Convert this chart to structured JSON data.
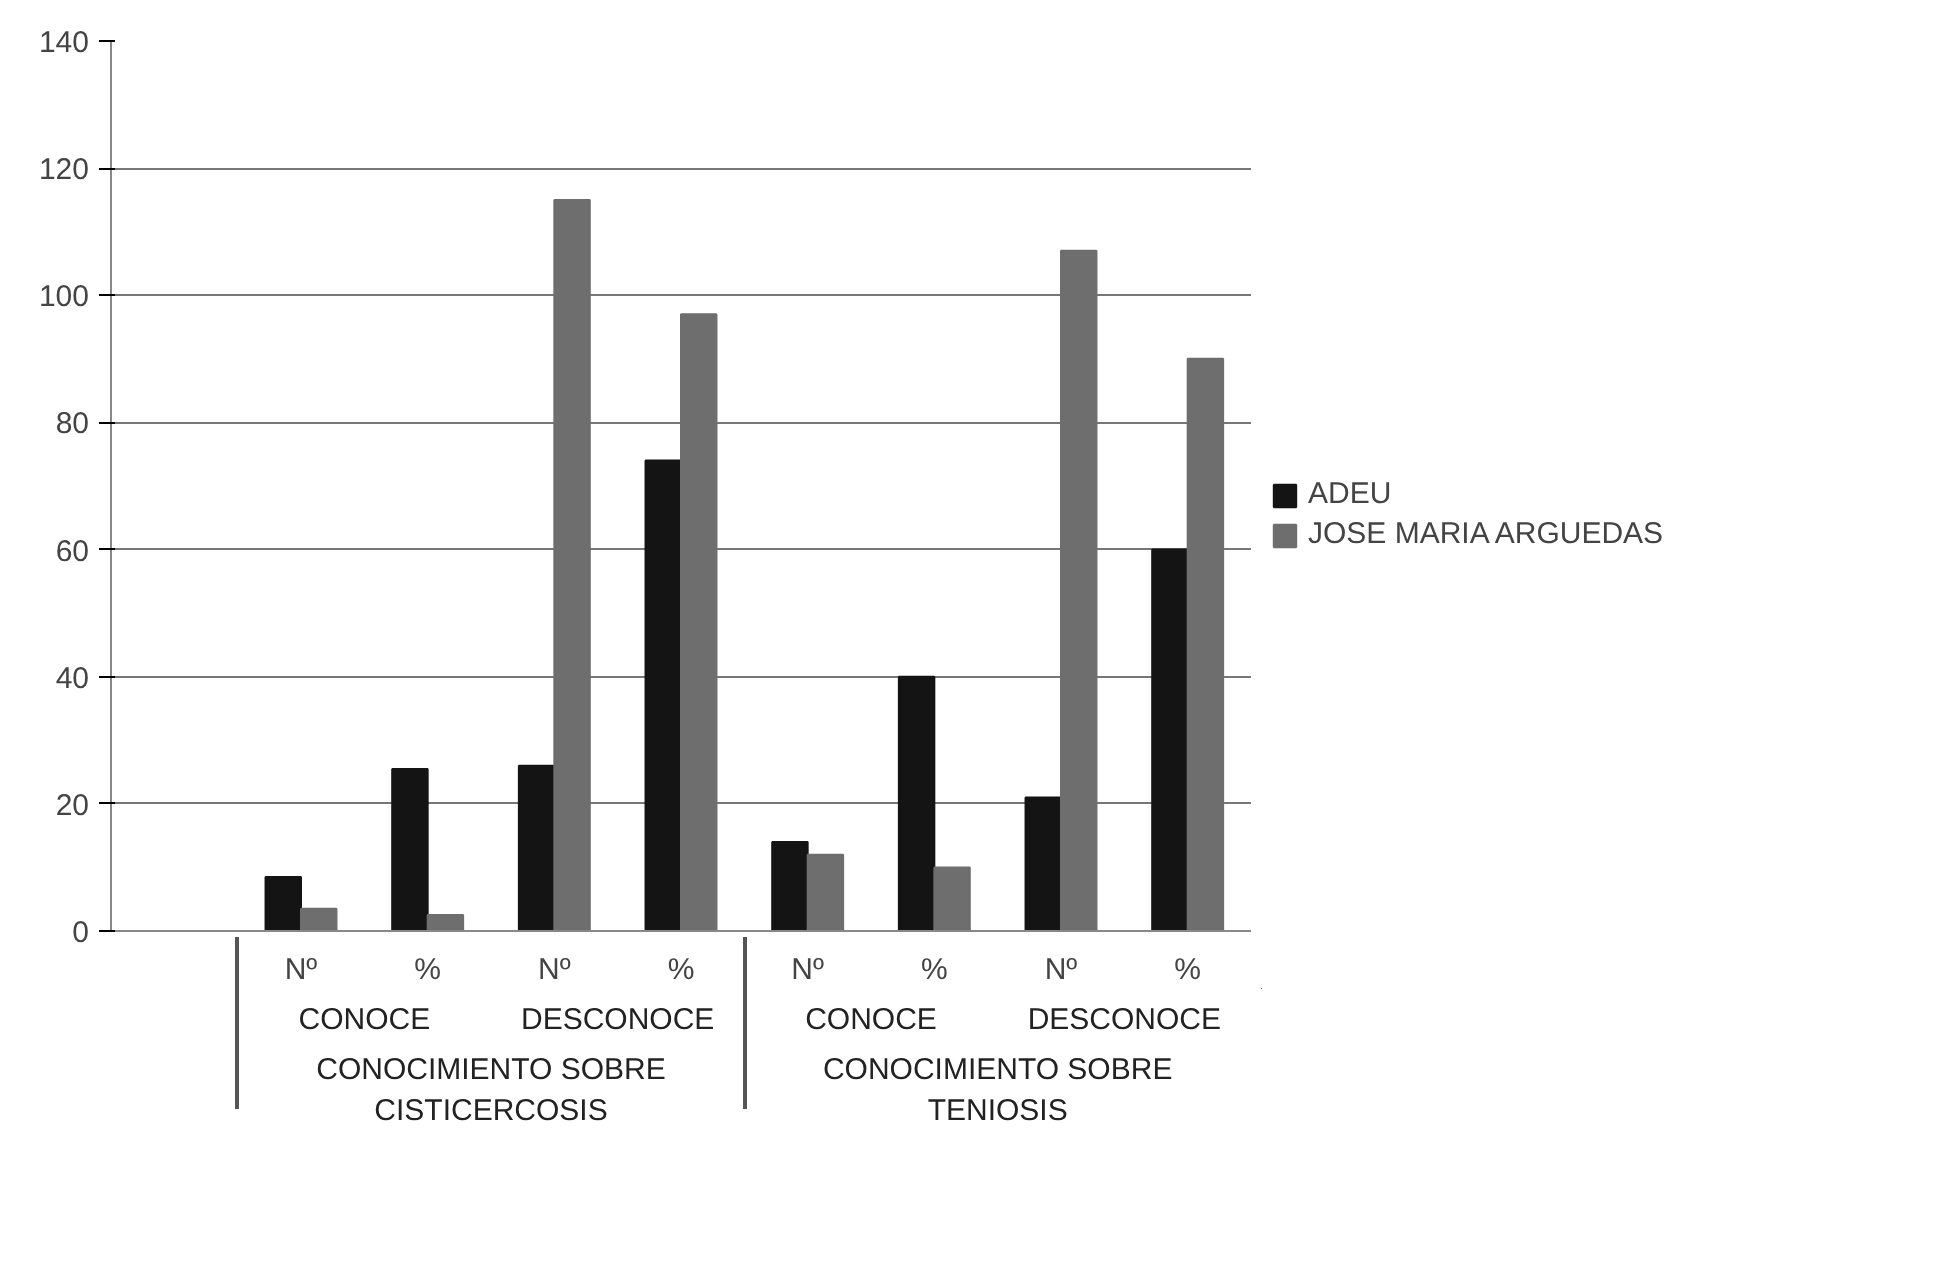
{
  "chart_data": {
    "type": "bar",
    "categories": [
      null,
      "Nº",
      "%",
      "Nº",
      "%",
      "Nº",
      "%",
      "Nº",
      "%"
    ],
    "series": [
      {
        "name": "ADEU",
        "color": "#141414",
        "values": [
          null,
          8.5,
          25.5,
          26,
          74,
          14,
          40,
          21,
          60
        ]
      },
      {
        "name": "JOSE MARIA ARGUEDAS",
        "color": "#6e6e6e",
        "values": [
          null,
          3.5,
          2.5,
          115,
          97,
          12,
          10,
          107,
          90
        ]
      }
    ],
    "annotations": [
      "CONOCE",
      "DESCONOCE",
      "CONOCE",
      "DESCONOCE",
      "CONOCIMIENTO SOBRE CISTICERCOSIS",
      "CONOCIMIENTO SOBRE TENIOSIS"
    ],
    "ylim": [
      0,
      140
    ],
    "yticks": [
      0,
      20,
      40,
      60,
      80,
      100,
      120,
      140
    ],
    "grid": "y",
    "legend": "right"
  }
}
